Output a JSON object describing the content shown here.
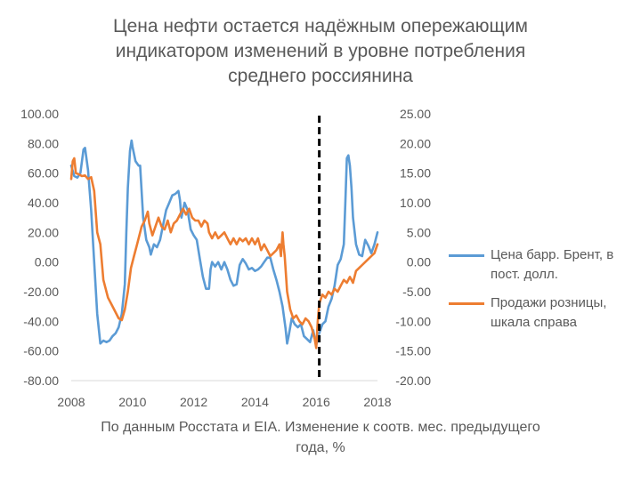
{
  "chart_data": {
    "type": "line",
    "title_lines": [
      "Цена нефти остается надёжным опережающим",
      "индикатором изменений в уровне потребления",
      "среднего россиянина"
    ],
    "caption_lines": [
      "По данным Росстата и EIA. Изменение к соотв. мес. предыдущего",
      "года, %"
    ],
    "x_axis": {
      "min": 2008,
      "max": 2018,
      "ticks": [
        "2008",
        "2010",
        "2012",
        "2014",
        "2016",
        "2018"
      ]
    },
    "y_left": {
      "min": -80,
      "max": 100,
      "step": 20,
      "ticks": [
        "100.00",
        "80.00",
        "60.00",
        "40.00",
        "20.00",
        "0.00",
        "-20.00",
        "-40.00",
        "-60.00",
        "-80.00"
      ]
    },
    "y_right": {
      "min": -20,
      "max": 25,
      "step": 5,
      "ticks": [
        "25.00",
        "20.00",
        "15.00",
        "10.00",
        "5.00",
        "0.00",
        "-5.00",
        "-10.00",
        "-15.00",
        "-20.00"
      ]
    },
    "grid": false,
    "marker": {
      "type": "vertical-dashed-line",
      "x": 2016.1,
      "color": "#000000"
    },
    "legend_position": "right",
    "series": [
      {
        "name": "Цена барр. Брент, в пост. долл.",
        "axis": "left",
        "color": "#5B9BD5",
        "points": [
          [
            2008.0,
            65
          ],
          [
            2008.1,
            58
          ],
          [
            2008.2,
            57
          ],
          [
            2008.3,
            60
          ],
          [
            2008.4,
            76
          ],
          [
            2008.45,
            77
          ],
          [
            2008.55,
            62
          ],
          [
            2008.65,
            35
          ],
          [
            2008.75,
            0
          ],
          [
            2008.85,
            -35
          ],
          [
            2008.95,
            -55
          ],
          [
            2009.05,
            -53
          ],
          [
            2009.15,
            -54
          ],
          [
            2009.25,
            -53
          ],
          [
            2009.35,
            -50
          ],
          [
            2009.45,
            -48
          ],
          [
            2009.55,
            -44
          ],
          [
            2009.65,
            -35
          ],
          [
            2009.75,
            -15
          ],
          [
            2009.8,
            20
          ],
          [
            2009.85,
            50
          ],
          [
            2009.92,
            75
          ],
          [
            2009.97,
            82
          ],
          [
            2010.0,
            78
          ],
          [
            2010.1,
            68
          ],
          [
            2010.2,
            65
          ],
          [
            2010.25,
            65
          ],
          [
            2010.35,
            30
          ],
          [
            2010.45,
            15
          ],
          [
            2010.55,
            10
          ],
          [
            2010.6,
            5
          ],
          [
            2010.7,
            12
          ],
          [
            2010.8,
            10
          ],
          [
            2010.9,
            15
          ],
          [
            2011.0,
            25
          ],
          [
            2011.1,
            35
          ],
          [
            2011.2,
            40
          ],
          [
            2011.3,
            45
          ],
          [
            2011.4,
            46
          ],
          [
            2011.5,
            48
          ],
          [
            2011.55,
            42
          ],
          [
            2011.6,
            30
          ],
          [
            2011.7,
            40
          ],
          [
            2011.8,
            35
          ],
          [
            2011.9,
            22
          ],
          [
            2012.0,
            18
          ],
          [
            2012.1,
            15
          ],
          [
            2012.2,
            2
          ],
          [
            2012.3,
            -10
          ],
          [
            2012.4,
            -18
          ],
          [
            2012.5,
            -18
          ],
          [
            2012.55,
            -5
          ],
          [
            2012.6,
            0
          ],
          [
            2012.7,
            -3
          ],
          [
            2012.8,
            0
          ],
          [
            2012.9,
            -5
          ],
          [
            2013.0,
            0
          ],
          [
            2013.1,
            -5
          ],
          [
            2013.2,
            -12
          ],
          [
            2013.3,
            -16
          ],
          [
            2013.4,
            -15
          ],
          [
            2013.5,
            -2
          ],
          [
            2013.6,
            2
          ],
          [
            2013.7,
            -1
          ],
          [
            2013.8,
            -5
          ],
          [
            2013.9,
            -4
          ],
          [
            2014.0,
            -6
          ],
          [
            2014.1,
            -5
          ],
          [
            2014.2,
            -3
          ],
          [
            2014.3,
            0
          ],
          [
            2014.4,
            3
          ],
          [
            2014.5,
            3
          ],
          [
            2014.6,
            -5
          ],
          [
            2014.7,
            -12
          ],
          [
            2014.8,
            -20
          ],
          [
            2014.9,
            -30
          ],
          [
            2015.0,
            -45
          ],
          [
            2015.05,
            -55
          ],
          [
            2015.1,
            -50
          ],
          [
            2015.2,
            -38
          ],
          [
            2015.3,
            -42
          ],
          [
            2015.4,
            -44
          ],
          [
            2015.5,
            -42
          ],
          [
            2015.6,
            -50
          ],
          [
            2015.7,
            -52
          ],
          [
            2015.8,
            -54
          ],
          [
            2015.9,
            -46
          ],
          [
            2016.0,
            -56
          ],
          [
            2016.1,
            -48
          ],
          [
            2016.2,
            -42
          ],
          [
            2016.3,
            -40
          ],
          [
            2016.4,
            -30
          ],
          [
            2016.5,
            -25
          ],
          [
            2016.6,
            -16
          ],
          [
            2016.7,
            -2
          ],
          [
            2016.8,
            2
          ],
          [
            2016.9,
            12
          ],
          [
            2016.95,
            40
          ],
          [
            2017.0,
            70
          ],
          [
            2017.05,
            72
          ],
          [
            2017.1,
            65
          ],
          [
            2017.15,
            50
          ],
          [
            2017.2,
            30
          ],
          [
            2017.3,
            12
          ],
          [
            2017.4,
            5
          ],
          [
            2017.5,
            4
          ],
          [
            2017.6,
            15
          ],
          [
            2017.7,
            11
          ],
          [
            2017.8,
            6
          ],
          [
            2017.9,
            12
          ],
          [
            2018.0,
            20
          ]
        ]
      },
      {
        "name": "Продажи розницы, шкала справа",
        "axis": "right",
        "color": "#ED7D31",
        "points": [
          [
            2008.0,
            14.0
          ],
          [
            2008.05,
            17.0
          ],
          [
            2008.1,
            17.5
          ],
          [
            2008.15,
            15.0
          ],
          [
            2008.25,
            14.8
          ],
          [
            2008.35,
            14.5
          ],
          [
            2008.45,
            14.6
          ],
          [
            2008.55,
            14.0
          ],
          [
            2008.65,
            14.3
          ],
          [
            2008.75,
            12.0
          ],
          [
            2008.85,
            5.0
          ],
          [
            2008.95,
            3.0
          ],
          [
            2009.05,
            -3.0
          ],
          [
            2009.2,
            -6.0
          ],
          [
            2009.4,
            -8.0
          ],
          [
            2009.55,
            -9.5
          ],
          [
            2009.65,
            -9.8
          ],
          [
            2009.75,
            -8.0
          ],
          [
            2009.85,
            -5.0
          ],
          [
            2009.95,
            -1.0
          ],
          [
            2010.05,
            1.0
          ],
          [
            2010.15,
            3.0
          ],
          [
            2010.3,
            6.0
          ],
          [
            2010.4,
            7.0
          ],
          [
            2010.5,
            8.5
          ],
          [
            2010.55,
            6.5
          ],
          [
            2010.65,
            4.5
          ],
          [
            2010.75,
            6.0
          ],
          [
            2010.85,
            7.5
          ],
          [
            2010.95,
            6.0
          ],
          [
            2011.05,
            5.5
          ],
          [
            2011.15,
            7.0
          ],
          [
            2011.25,
            5.0
          ],
          [
            2011.35,
            6.5
          ],
          [
            2011.45,
            7.0
          ],
          [
            2011.55,
            8.0
          ],
          [
            2011.65,
            9.0
          ],
          [
            2011.75,
            8.0
          ],
          [
            2011.85,
            9.0
          ],
          [
            2011.95,
            7.5
          ],
          [
            2012.05,
            7.0
          ],
          [
            2012.15,
            7.0
          ],
          [
            2012.25,
            6.0
          ],
          [
            2012.35,
            7.0
          ],
          [
            2012.45,
            6.5
          ],
          [
            2012.5,
            5.0
          ],
          [
            2012.6,
            4.0
          ],
          [
            2012.7,
            5.0
          ],
          [
            2012.8,
            4.0
          ],
          [
            2012.9,
            4.5
          ],
          [
            2013.0,
            5.0
          ],
          [
            2013.1,
            4.0
          ],
          [
            2013.2,
            3.0
          ],
          [
            2013.3,
            4.0
          ],
          [
            2013.4,
            3.0
          ],
          [
            2013.5,
            4.0
          ],
          [
            2013.6,
            3.5
          ],
          [
            2013.7,
            4.0
          ],
          [
            2013.8,
            3.0
          ],
          [
            2013.9,
            4.0
          ],
          [
            2014.0,
            3.0
          ],
          [
            2014.1,
            4.0
          ],
          [
            2014.2,
            2.0
          ],
          [
            2014.3,
            3.0
          ],
          [
            2014.4,
            2.0
          ],
          [
            2014.5,
            1.0
          ],
          [
            2014.6,
            1.5
          ],
          [
            2014.7,
            2.0
          ],
          [
            2014.8,
            3.0
          ],
          [
            2014.85,
            1.0
          ],
          [
            2014.9,
            5.0
          ],
          [
            2014.93,
            3.0
          ],
          [
            2014.97,
            1.0
          ],
          [
            2015.05,
            -5.0
          ],
          [
            2015.15,
            -8.0
          ],
          [
            2015.25,
            -9.5
          ],
          [
            2015.35,
            -9.0
          ],
          [
            2015.45,
            -10.0
          ],
          [
            2015.55,
            -10.5
          ],
          [
            2015.65,
            -9.5
          ],
          [
            2015.75,
            -10.0
          ],
          [
            2015.85,
            -11.0
          ],
          [
            2015.95,
            -13.0
          ],
          [
            2016.0,
            -14.5
          ],
          [
            2016.05,
            -10.0
          ],
          [
            2016.1,
            -7.0
          ],
          [
            2016.2,
            -5.5
          ],
          [
            2016.3,
            -6.0
          ],
          [
            2016.4,
            -5.0
          ],
          [
            2016.5,
            -5.5
          ],
          [
            2016.6,
            -4.5
          ],
          [
            2016.7,
            -5.0
          ],
          [
            2016.8,
            -4.0
          ],
          [
            2016.9,
            -3.0
          ],
          [
            2017.0,
            -3.5
          ],
          [
            2017.1,
            -2.5
          ],
          [
            2017.2,
            -3.5
          ],
          [
            2017.3,
            -1.5
          ],
          [
            2017.4,
            -1.0
          ],
          [
            2017.5,
            -0.5
          ],
          [
            2017.6,
            0.0
          ],
          [
            2017.7,
            0.5
          ],
          [
            2017.8,
            1.0
          ],
          [
            2017.9,
            1.5
          ],
          [
            2018.0,
            3.0
          ]
        ]
      }
    ]
  }
}
